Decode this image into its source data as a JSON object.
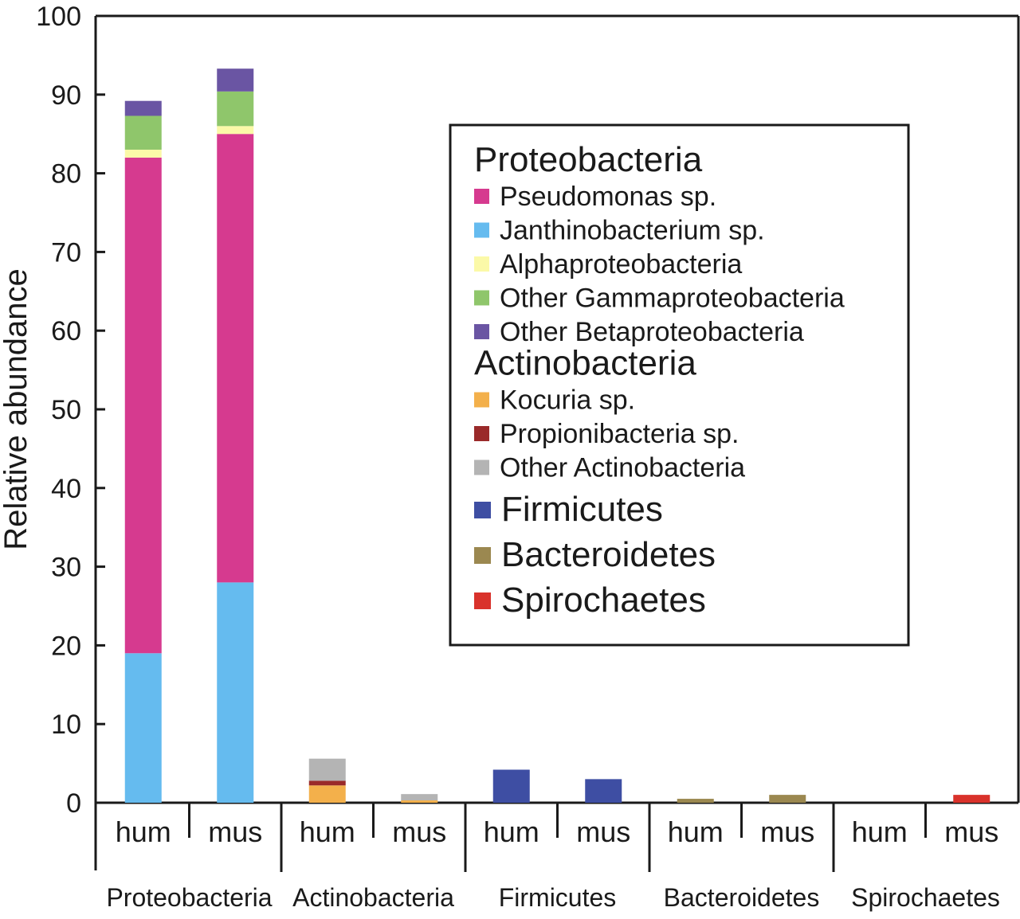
{
  "chart_data": {
    "type": "bar",
    "stacked": true,
    "ylabel": "Relative abundance",
    "ylim": [
      0,
      100
    ],
    "yticks": [
      0,
      10,
      20,
      30,
      40,
      50,
      60,
      70,
      80,
      90,
      100
    ],
    "groups": [
      "Proteobacteria",
      "Actinobacteria",
      "Firmicutes",
      "Bacteroidetes",
      "Spirochaetes"
    ],
    "samples": [
      "hum",
      "mus"
    ],
    "bars": [
      {
        "group": "Proteobacteria",
        "sample": "hum",
        "segments": [
          {
            "taxon": "Janthinobacterium sp.",
            "value": 19.0
          },
          {
            "taxon": "Pseudomonas sp.",
            "value": 63.0
          },
          {
            "taxon": "Alphaproteobacteria",
            "value": 1.0
          },
          {
            "taxon": "Other Gammaproteobacteria",
            "value": 4.3
          },
          {
            "taxon": "Other Betaproteobacteria",
            "value": 1.9
          }
        ]
      },
      {
        "group": "Proteobacteria",
        "sample": "mus",
        "segments": [
          {
            "taxon": "Janthinobacterium sp.",
            "value": 28.0
          },
          {
            "taxon": "Pseudomonas sp.",
            "value": 57.0
          },
          {
            "taxon": "Alphaproteobacteria",
            "value": 1.0
          },
          {
            "taxon": "Other Gammaproteobacteria",
            "value": 4.4
          },
          {
            "taxon": "Other Betaproteobacteria",
            "value": 2.9
          }
        ]
      },
      {
        "group": "Actinobacteria",
        "sample": "hum",
        "segments": [
          {
            "taxon": "Kocuria sp.",
            "value": 2.2
          },
          {
            "taxon": "Propionibacteria sp.",
            "value": 0.6
          },
          {
            "taxon": "Other Actinobacteria",
            "value": 2.8
          }
        ]
      },
      {
        "group": "Actinobacteria",
        "sample": "mus",
        "segments": [
          {
            "taxon": "Kocuria sp.",
            "value": 0.3
          },
          {
            "taxon": "Propionibacteria sp.",
            "value": 0.0
          },
          {
            "taxon": "Other Actinobacteria",
            "value": 0.8
          }
        ]
      },
      {
        "group": "Firmicutes",
        "sample": "hum",
        "segments": [
          {
            "taxon": "Firmicutes",
            "value": 4.2
          }
        ]
      },
      {
        "group": "Firmicutes",
        "sample": "mus",
        "segments": [
          {
            "taxon": "Firmicutes",
            "value": 3.0
          }
        ]
      },
      {
        "group": "Bacteroidetes",
        "sample": "hum",
        "segments": [
          {
            "taxon": "Bacteroidetes",
            "value": 0.5
          }
        ]
      },
      {
        "group": "Bacteroidetes",
        "sample": "mus",
        "segments": [
          {
            "taxon": "Bacteroidetes",
            "value": 1.0
          }
        ]
      },
      {
        "group": "Spirochaetes",
        "sample": "hum",
        "segments": []
      },
      {
        "group": "Spirochaetes",
        "sample": "mus",
        "segments": [
          {
            "taxon": "Spirochaetes",
            "value": 1.0
          }
        ]
      }
    ],
    "colors": {
      "Pseudomonas sp.": "#d63a8f",
      "Janthinobacterium sp.": "#65bbef",
      "Alphaproteobacteria": "#fbf9a8",
      "Other Gammaproteobacteria": "#8fc66b",
      "Other Betaproteobacteria": "#6a55a3",
      "Kocuria sp.": "#f3b04b",
      "Propionibacteria sp.": "#9a2a2a",
      "Other Actinobacteria": "#b4b4b4",
      "Firmicutes": "#3e4ea3",
      "Bacteroidetes": "#9b8850",
      "Spirochaetes": "#d9322b"
    },
    "legend": {
      "placement": "top-right",
      "sections": [
        {
          "header": "Proteobacteria",
          "items": [
            "Pseudomonas sp.",
            "Janthinobacterium sp.",
            "Alphaproteobacteria",
            "Other Gammaproteobacteria",
            "Other Betaproteobacteria"
          ]
        },
        {
          "header": "Actinobacteria",
          "items": [
            "Kocuria sp.",
            "Propionibacteria sp.",
            "Other Actinobacteria"
          ]
        },
        {
          "header": "",
          "large_items": [
            "Firmicutes",
            "Bacteroidetes",
            "Spirochaetes"
          ]
        }
      ]
    }
  }
}
